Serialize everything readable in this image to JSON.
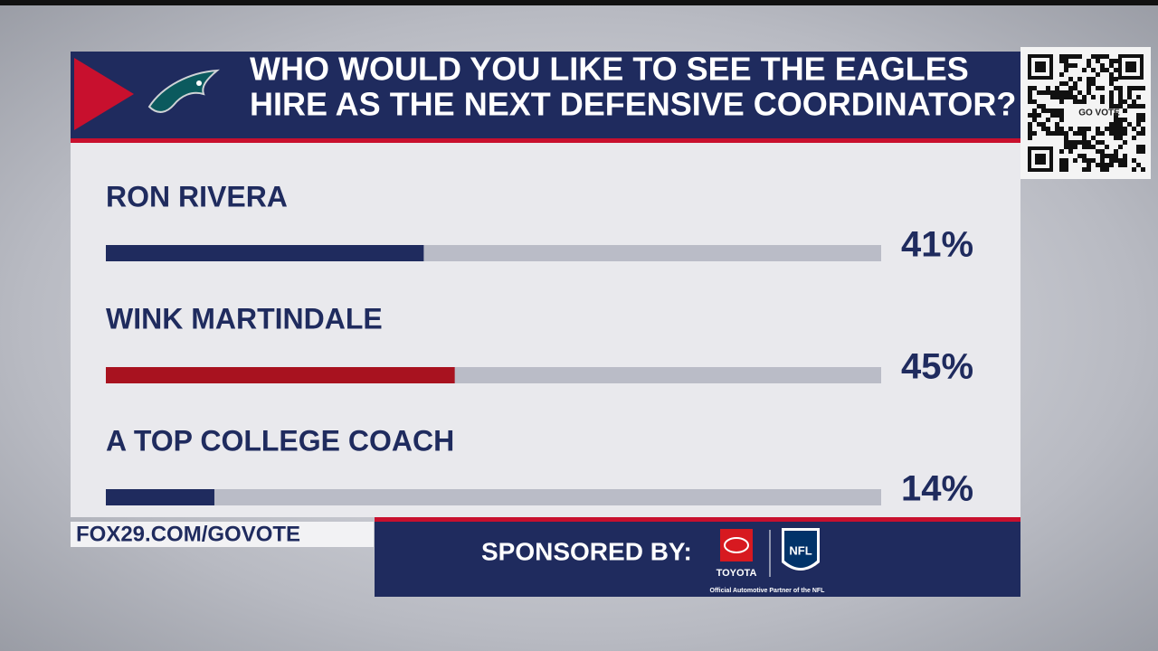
{
  "chart_data": {
    "type": "bar",
    "orientation": "horizontal",
    "title": [
      "WHO WOULD YOU LIKE TO SEE THE EAGLES",
      "HIRE AS THE NEXT DEFENSIVE COORDINATOR?"
    ],
    "categories": [
      "RON RIVERA",
      "WINK MARTINDALE",
      "A TOP COLLEGE COACH"
    ],
    "values": [
      41,
      45,
      14
    ],
    "value_labels": [
      "41%",
      "45%",
      "14%"
    ],
    "colors": [
      "#1f2b5e",
      "#a8121f",
      "#1f2b5e"
    ],
    "xlim": [
      0,
      100
    ],
    "url": "FOX29.COM/GOVOTE",
    "sponsor_label": "SPONSORED BY:",
    "sponsor_name": "TOYOTA",
    "sponsor_note": "Official Automotive Partner of the NFL",
    "nfl_logo": "NFL",
    "qr_label": "GO VOTE"
  }
}
